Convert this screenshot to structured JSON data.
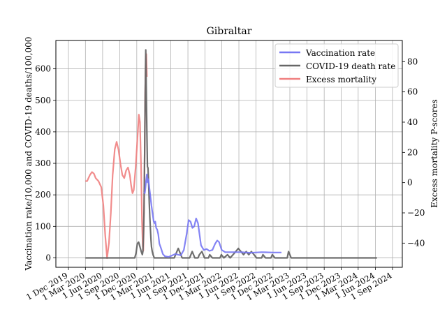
{
  "chart_data": {
    "type": "line",
    "title": "Gibraltar",
    "ylabel": "Vaccination rate/10,000 and COVID-19 deaths/100,000",
    "ylabel_right": "Excess mortality P-scores",
    "xlabel": "",
    "grid": true,
    "legend_position": "top-right",
    "x_ticks": [
      "1 Dec 2019",
      "1 Mar 2020",
      "1 Jun 2020",
      "1 Sep 2020",
      "1 Dec 2020",
      "1 Mar 2021",
      "1 Jun 2021",
      "1 Sep 2021",
      "1 Dec 2021",
      "1 Mar 2022",
      "1 Jun 2022",
      "1 Sep 2022",
      "1 Dec 2022",
      "1 Mar 2023",
      "1 Jun 2023",
      "1 Sep 2023",
      "1 Dec 2023",
      "1 Mar 2024",
      "1 Jun 2024",
      "1 Sep 2024"
    ],
    "y_left_ticks": [
      0,
      100,
      200,
      300,
      400,
      500,
      600
    ],
    "y_left_range": [
      -30,
      690
    ],
    "y_right_ticks": [
      -40,
      -20,
      0,
      20,
      40,
      60,
      80
    ],
    "y_right_range": [
      -56,
      94
    ],
    "series": [
      {
        "name": "Vaccination rate",
        "color": "#7777f3",
        "axis": "left",
        "points": [
          [
            "2021-01-10",
            210
          ],
          [
            "2021-01-13",
            205
          ],
          [
            "2021-01-16",
            220
          ],
          [
            "2021-01-20",
            245
          ],
          [
            "2021-01-24",
            265
          ],
          [
            "2021-01-28",
            240
          ],
          [
            "2021-02-01",
            250
          ],
          [
            "2021-02-06",
            225
          ],
          [
            "2021-02-12",
            195
          ],
          [
            "2021-02-18",
            165
          ],
          [
            "2021-02-24",
            140
          ],
          [
            "2021-03-02",
            115
          ],
          [
            "2021-03-06",
            110
          ],
          [
            "2021-03-10",
            115
          ],
          [
            "2021-03-15",
            95
          ],
          [
            "2021-03-20",
            90
          ],
          [
            "2021-03-26",
            75
          ],
          [
            "2021-04-01",
            45
          ],
          [
            "2021-04-10",
            30
          ],
          [
            "2021-04-20",
            12
          ],
          [
            "2021-05-01",
            5
          ],
          [
            "2021-05-20",
            3
          ],
          [
            "2021-06-10",
            8
          ],
          [
            "2021-06-25",
            12
          ],
          [
            "2021-07-10",
            10
          ],
          [
            "2021-07-25",
            8
          ],
          [
            "2021-08-10",
            25
          ],
          [
            "2021-08-25",
            75
          ],
          [
            "2021-09-05",
            120
          ],
          [
            "2021-09-15",
            115
          ],
          [
            "2021-09-25",
            95
          ],
          [
            "2021-10-05",
            100
          ],
          [
            "2021-10-15",
            125
          ],
          [
            "2021-10-25",
            110
          ],
          [
            "2021-11-10",
            40
          ],
          [
            "2021-11-25",
            25
          ],
          [
            "2021-12-10",
            28
          ],
          [
            "2021-12-25",
            22
          ],
          [
            "2022-01-10",
            25
          ],
          [
            "2022-01-25",
            45
          ],
          [
            "2022-02-05",
            55
          ],
          [
            "2022-02-15",
            50
          ],
          [
            "2022-03-01",
            25
          ],
          [
            "2022-03-20",
            18
          ],
          [
            "2022-05-01",
            18
          ],
          [
            "2022-06-15",
            18
          ],
          [
            "2022-08-01",
            16
          ],
          [
            "2022-10-01",
            18
          ],
          [
            "2022-12-01",
            17
          ],
          [
            "2023-01-15",
            17
          ]
        ]
      },
      {
        "name": "COVID-19 death rate",
        "color": "#666666",
        "axis": "left",
        "points": [
          [
            "2020-03-01",
            0
          ],
          [
            "2020-11-20",
            0
          ],
          [
            "2020-11-27",
            15
          ],
          [
            "2020-12-04",
            45
          ],
          [
            "2020-12-11",
            50
          ],
          [
            "2020-12-18",
            35
          ],
          [
            "2020-12-25",
            20
          ],
          [
            "2020-12-31",
            10
          ],
          [
            "2021-01-03",
            20
          ],
          [
            "2021-01-06",
            70
          ],
          [
            "2021-01-09",
            150
          ],
          [
            "2021-01-12",
            330
          ],
          [
            "2021-01-15",
            520
          ],
          [
            "2021-01-18",
            660
          ],
          [
            "2021-01-21",
            530
          ],
          [
            "2021-01-24",
            400
          ],
          [
            "2021-01-27",
            290
          ],
          [
            "2021-01-30",
            285
          ],
          [
            "2021-02-03",
            230
          ],
          [
            "2021-02-06",
            175
          ],
          [
            "2021-02-09",
            130
          ],
          [
            "2021-02-12",
            95
          ],
          [
            "2021-02-15",
            60
          ],
          [
            "2021-02-18",
            35
          ],
          [
            "2021-02-22",
            20
          ],
          [
            "2021-02-26",
            10
          ],
          [
            "2021-03-05",
            0
          ],
          [
            "2021-06-20",
            0
          ],
          [
            "2021-06-27",
            10
          ],
          [
            "2021-07-04",
            20
          ],
          [
            "2021-07-11",
            30
          ],
          [
            "2021-07-18",
            20
          ],
          [
            "2021-07-25",
            10
          ],
          [
            "2021-08-01",
            0
          ],
          [
            "2021-09-10",
            0
          ],
          [
            "2021-09-17",
            10
          ],
          [
            "2021-09-24",
            20
          ],
          [
            "2021-10-01",
            10
          ],
          [
            "2021-10-08",
            0
          ],
          [
            "2021-10-25",
            0
          ],
          [
            "2021-11-01",
            10
          ],
          [
            "2021-11-15",
            20
          ],
          [
            "2021-11-29",
            0
          ],
          [
            "2021-12-20",
            0
          ],
          [
            "2021-12-27",
            10
          ],
          [
            "2022-01-10",
            0
          ],
          [
            "2022-02-20",
            0
          ],
          [
            "2022-02-27",
            10
          ],
          [
            "2022-03-13",
            0
          ],
          [
            "2022-04-01",
            10
          ],
          [
            "2022-04-15",
            0
          ],
          [
            "2022-05-01",
            10
          ],
          [
            "2022-05-15",
            20
          ],
          [
            "2022-05-29",
            30
          ],
          [
            "2022-06-12",
            20
          ],
          [
            "2022-06-26",
            10
          ],
          [
            "2022-07-10",
            20
          ],
          [
            "2022-07-24",
            10
          ],
          [
            "2022-08-07",
            20
          ],
          [
            "2022-08-21",
            10
          ],
          [
            "2022-09-04",
            0
          ],
          [
            "2022-10-01",
            0
          ],
          [
            "2022-10-08",
            10
          ],
          [
            "2022-10-22",
            0
          ],
          [
            "2022-11-20",
            0
          ],
          [
            "2022-11-27",
            10
          ],
          [
            "2022-12-11",
            0
          ],
          [
            "2023-02-15",
            0
          ],
          [
            "2023-02-22",
            20
          ],
          [
            "2023-03-08",
            0
          ],
          [
            "2024-06-10",
            0
          ]
        ]
      },
      {
        "name": "Excess mortality",
        "color": "#f08080",
        "axis": "right",
        "points": [
          [
            "2020-03-01",
            1
          ],
          [
            "2020-03-10",
            1
          ],
          [
            "2020-03-25",
            5
          ],
          [
            "2020-04-05",
            7
          ],
          [
            "2020-04-15",
            6
          ],
          [
            "2020-04-25",
            3
          ],
          [
            "2020-05-10",
            1
          ],
          [
            "2020-05-25",
            -3
          ],
          [
            "2020-06-05",
            -15
          ],
          [
            "2020-06-15",
            -35
          ],
          [
            "2020-06-25",
            -50
          ],
          [
            "2020-07-05",
            -40
          ],
          [
            "2020-07-15",
            -20
          ],
          [
            "2020-07-25",
            5
          ],
          [
            "2020-08-05",
            22
          ],
          [
            "2020-08-15",
            27
          ],
          [
            "2020-08-25",
            22
          ],
          [
            "2020-09-05",
            12
          ],
          [
            "2020-09-15",
            5
          ],
          [
            "2020-09-25",
            3
          ],
          [
            "2020-10-05",
            8
          ],
          [
            "2020-10-15",
            10
          ],
          [
            "2020-10-25",
            5
          ],
          [
            "2020-11-01",
            -2
          ],
          [
            "2020-11-08",
            -7
          ],
          [
            "2020-11-15",
            -5
          ],
          [
            "2020-11-25",
            10
          ],
          [
            "2020-12-05",
            30
          ],
          [
            "2020-12-12",
            45
          ],
          [
            "2020-12-18",
            40
          ],
          [
            "2020-12-24",
            10
          ],
          [
            "2020-12-29",
            -25
          ],
          [
            "2021-01-02",
            -42
          ],
          [
            "2021-01-05",
            -45
          ],
          [
            "2021-01-09",
            -20
          ],
          [
            "2021-01-12",
            20
          ],
          [
            "2021-01-15",
            60
          ],
          [
            "2021-01-18",
            82
          ],
          [
            "2021-01-21",
            85
          ],
          [
            "2021-01-24",
            70
          ]
        ]
      }
    ]
  }
}
